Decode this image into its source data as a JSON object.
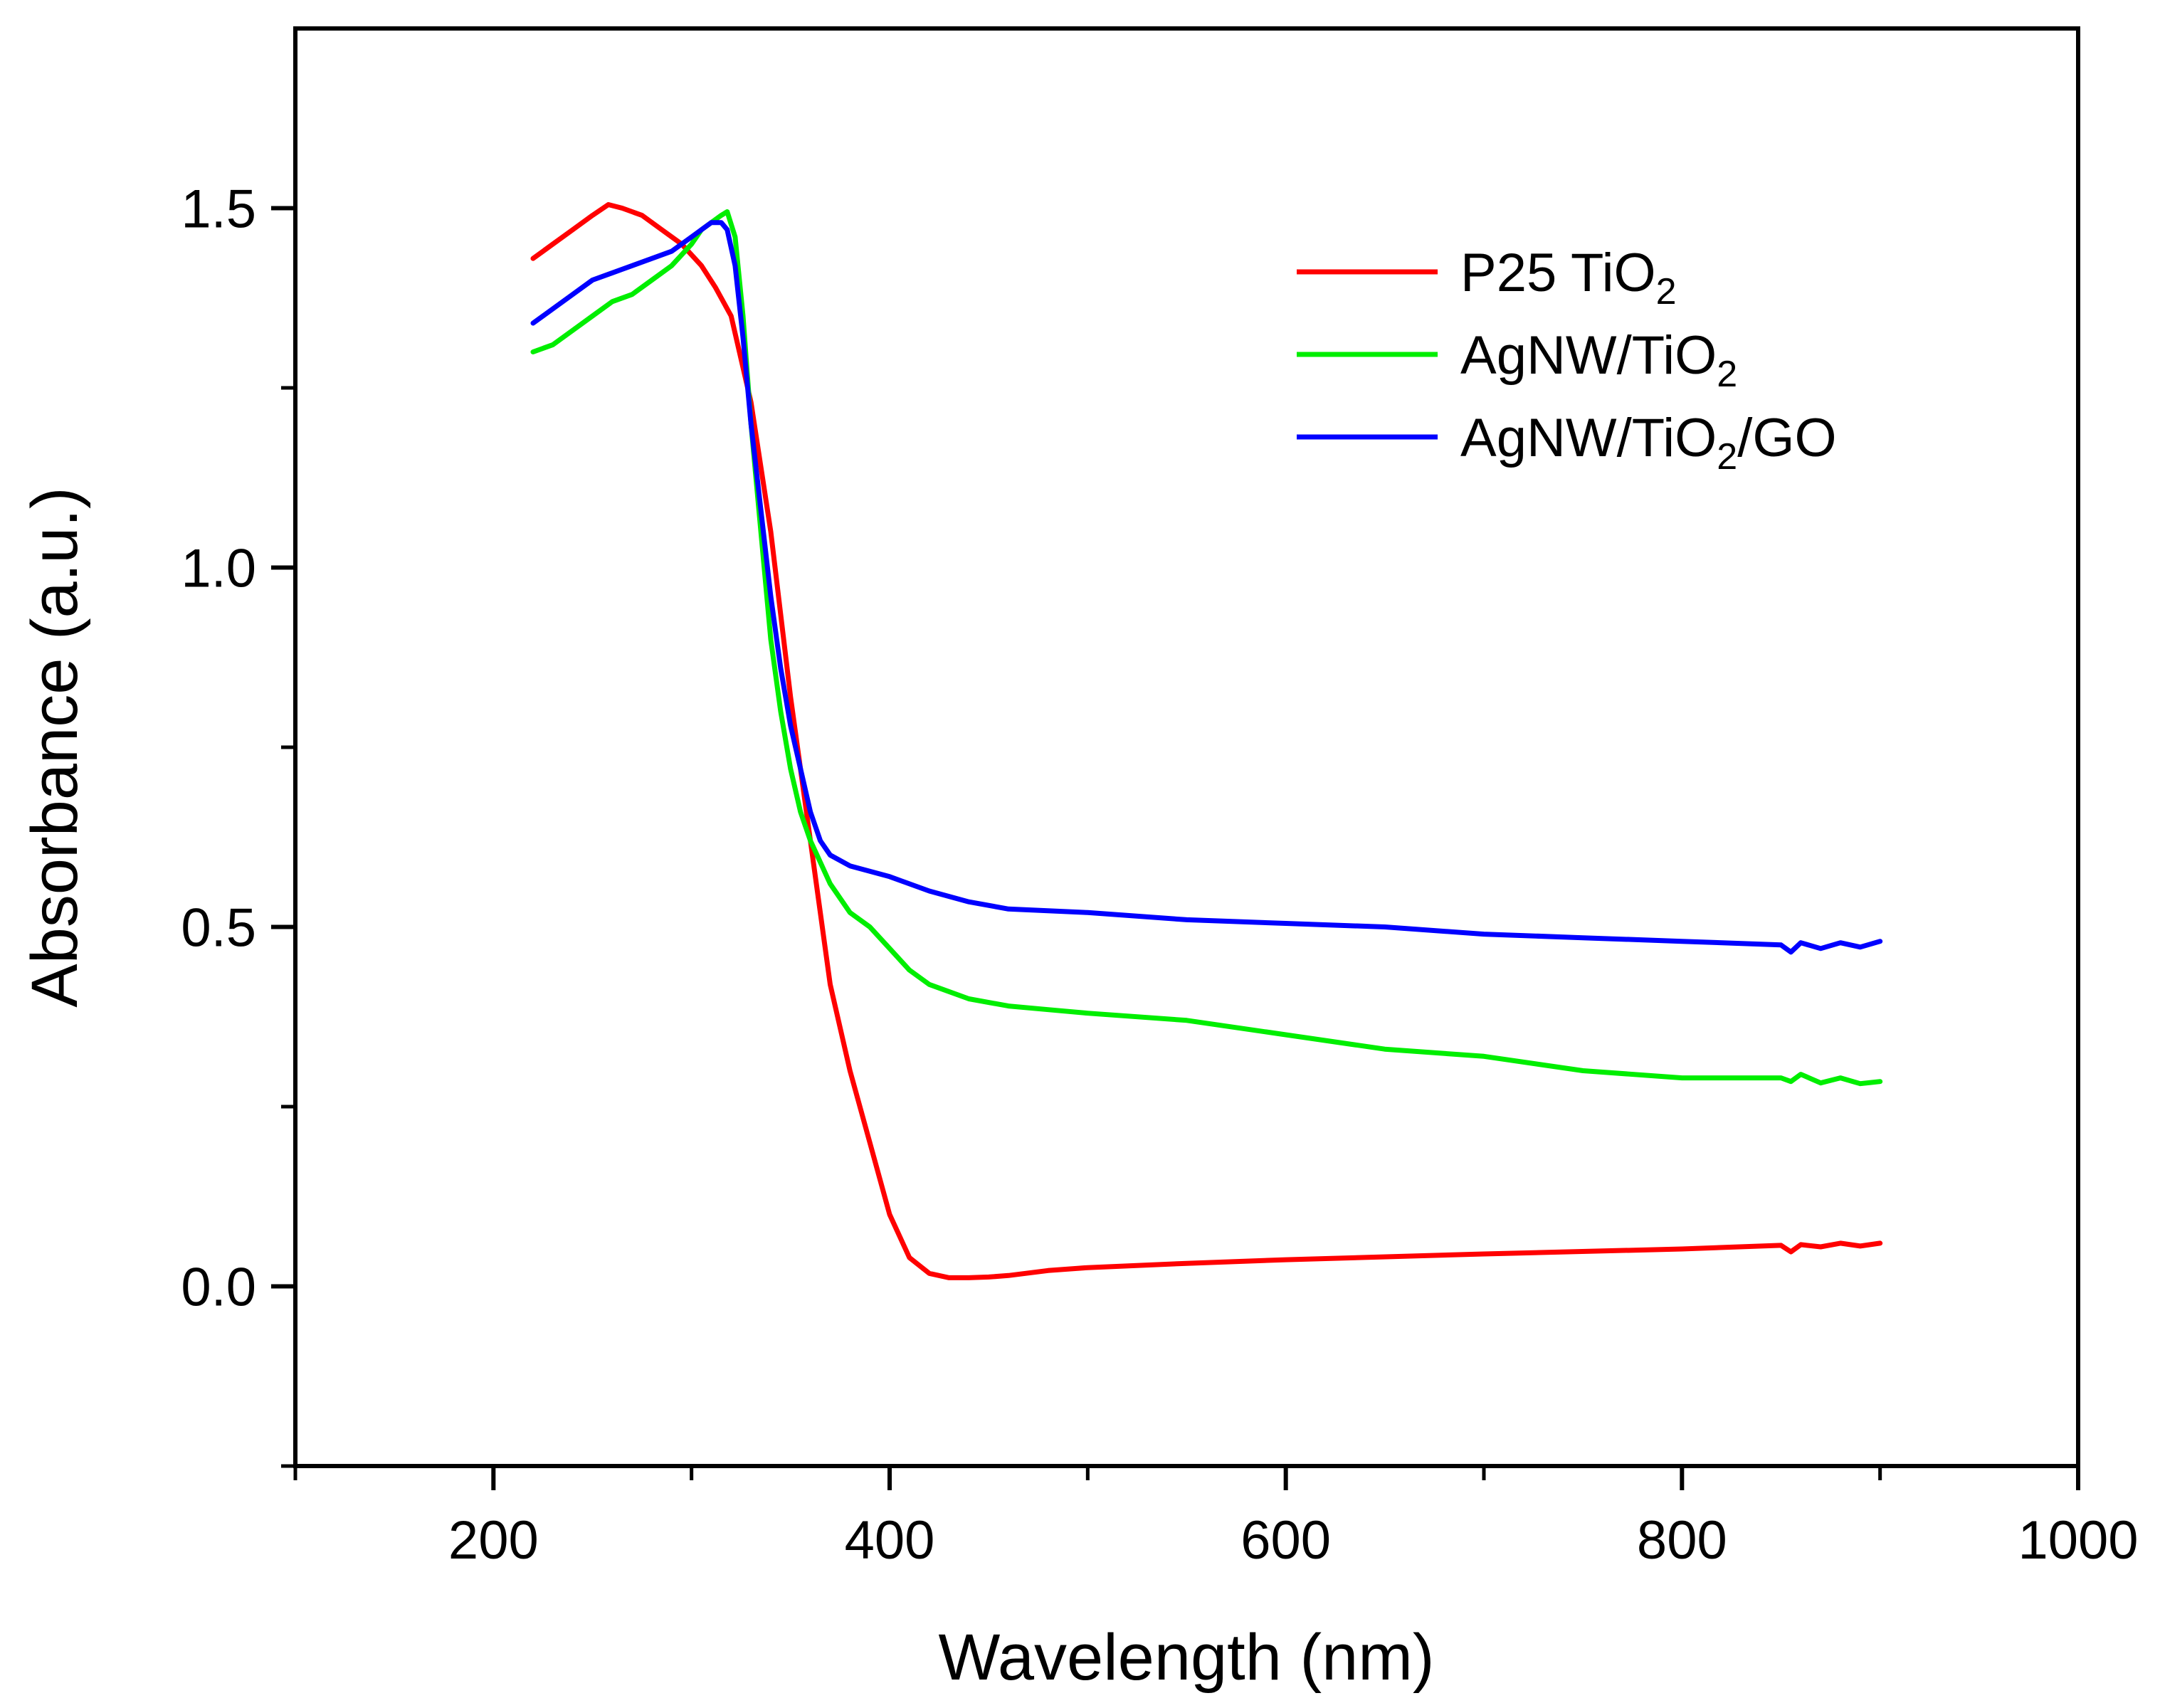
{
  "chart_data": {
    "type": "line",
    "title": "",
    "xlabel": "Wavelength (nm)",
    "ylabel": "Absorbance (a.u.)",
    "xlim": [
      100,
      1000
    ],
    "ylim": [
      -0.25,
      1.75
    ],
    "x_ticks": [
      200,
      400,
      600,
      800,
      1000
    ],
    "x_tick_labels": [
      "200",
      "400",
      "600",
      "800",
      "1000"
    ],
    "x_minor_ticks": [
      100,
      300,
      500,
      700,
      900
    ],
    "y_ticks": [
      0.0,
      0.5,
      1.0,
      1.5
    ],
    "y_tick_labels": [
      "0.0",
      "0.5",
      "1.0",
      "1.5"
    ],
    "y_minor_ticks": [
      -0.25,
      0.25,
      0.75,
      1.25
    ],
    "grid": false,
    "legend_position": "top-right",
    "series": [
      {
        "name": "P25 TiO2",
        "label_main": "P25 TiO",
        "label_sub": "2",
        "label_tail": "",
        "color": "#ff0000",
        "x": [
          220,
          230,
          240,
          250,
          258,
          265,
          275,
          285,
          295,
          305,
          312,
          320,
          330,
          340,
          350,
          360,
          370,
          380,
          390,
          400,
          410,
          420,
          430,
          440,
          450,
          460,
          480,
          500,
          550,
          600,
          700,
          800,
          850,
          855,
          860,
          870,
          880,
          890,
          900
        ],
        "y": [
          1.43,
          1.45,
          1.47,
          1.49,
          1.505,
          1.5,
          1.49,
          1.47,
          1.45,
          1.42,
          1.39,
          1.35,
          1.23,
          1.05,
          0.82,
          0.62,
          0.42,
          0.3,
          0.2,
          0.1,
          0.04,
          0.018,
          0.012,
          0.012,
          0.013,
          0.015,
          0.022,
          0.026,
          0.032,
          0.037,
          0.045,
          0.052,
          0.057,
          0.048,
          0.058,
          0.055,
          0.06,
          0.056,
          0.06
        ]
      },
      {
        "name": "AgNW/TiO2",
        "label_main": "AgNW/TiO",
        "label_sub": "2",
        "label_tail": "",
        "color": "#00ee00",
        "x": [
          220,
          230,
          240,
          250,
          260,
          270,
          280,
          290,
          300,
          305,
          310,
          315,
          318,
          322,
          326,
          330,
          335,
          340,
          345,
          350,
          355,
          360,
          365,
          370,
          380,
          390,
          400,
          410,
          420,
          440,
          460,
          480,
          500,
          550,
          600,
          650,
          700,
          750,
          800,
          850,
          855,
          860,
          870,
          880,
          890,
          900
        ],
        "y": [
          1.3,
          1.31,
          1.33,
          1.35,
          1.37,
          1.38,
          1.4,
          1.42,
          1.45,
          1.47,
          1.48,
          1.49,
          1.495,
          1.46,
          1.35,
          1.2,
          1.05,
          0.9,
          0.8,
          0.72,
          0.66,
          0.62,
          0.59,
          0.56,
          0.52,
          0.5,
          0.47,
          0.44,
          0.42,
          0.4,
          0.39,
          0.385,
          0.38,
          0.37,
          0.35,
          0.33,
          0.32,
          0.3,
          0.29,
          0.29,
          0.285,
          0.295,
          0.283,
          0.29,
          0.282,
          0.285
        ]
      },
      {
        "name": "AgNW/TiO2/GO",
        "label_main": "AgNW/TiO",
        "label_sub": "2",
        "label_tail": "/GO",
        "color": "#0000ff",
        "x": [
          220,
          230,
          240,
          250,
          260,
          270,
          280,
          290,
          300,
          305,
          310,
          315,
          318,
          322,
          326,
          330,
          335,
          340,
          345,
          350,
          355,
          360,
          365,
          370,
          380,
          400,
          420,
          440,
          460,
          500,
          550,
          600,
          650,
          700,
          750,
          800,
          850,
          855,
          860,
          870,
          880,
          890,
          900
        ],
        "y": [
          1.34,
          1.36,
          1.38,
          1.4,
          1.41,
          1.42,
          1.43,
          1.44,
          1.46,
          1.47,
          1.48,
          1.48,
          1.47,
          1.42,
          1.32,
          1.2,
          1.08,
          0.96,
          0.86,
          0.78,
          0.72,
          0.66,
          0.62,
          0.6,
          0.585,
          0.57,
          0.55,
          0.535,
          0.525,
          0.52,
          0.51,
          0.505,
          0.5,
          0.49,
          0.485,
          0.48,
          0.475,
          0.465,
          0.478,
          0.47,
          0.478,
          0.472,
          0.48
        ]
      }
    ]
  }
}
